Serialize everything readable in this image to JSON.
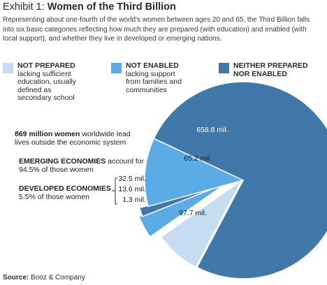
{
  "header": {
    "exhibit_label": "Exhibit 1:",
    "title": "Women of the Third Billion",
    "subtitle": "Representing about one-fourth of the world's women between ages 20 and 65, the Third Billion falls into six basic categories reflecting how much they are prepared (with education) and enabled (with local support), and whether they live in developed or emerging nations."
  },
  "legend": [
    {
      "heading": "NOT PREPARED",
      "lines": [
        "lacking sufficient",
        "education, usually",
        "defined as",
        "secondary school"
      ],
      "color": "#c5dcf3"
    },
    {
      "heading": "NOT ENABLED",
      "lines": [
        "lacking support",
        "from families and",
        "communities"
      ],
      "color": "#5aabe6"
    },
    {
      "heading": "NEITHER PREPARED",
      "heading2": "NOR ENABLED",
      "lines": [],
      "color": "#4178aa"
    }
  ],
  "annotations": {
    "total_bold": "869 million women",
    "total_rest": " worldwide lead",
    "total_line2": "lives outside the economic system",
    "emerging_bold": "EMERGING ECONOMIES",
    "emerging_rest": " account for",
    "emerging_line2": "94.5% of those women",
    "developed_bold": "DEVELOPED ECONOMIES",
    "developed_line2": "5.5% of those women"
  },
  "chart_data": {
    "type": "pie",
    "unit": "mil.",
    "slices": [
      {
        "group": "emerging",
        "category": "NEITHER PREPARED NOR ENABLED",
        "value": 658.8,
        "label": "658.8 mil.",
        "color": "#4178aa",
        "label_color": "#ffffff"
      },
      {
        "group": "emerging",
        "category": "NOT PREPARED",
        "value": 65.2,
        "label": "65.2 mil.",
        "color": "#c5dcf3",
        "label_color": "#1e1e1e"
      },
      {
        "group": "developed",
        "category": "NOT ENABLED",
        "value": 32.5,
        "label": "32.5 mil.",
        "color": "#5aabe6",
        "label_color": "#1e1e1e"
      },
      {
        "group": "developed",
        "category": "NEITHER PREPARED NOR ENABLED",
        "value": 13.6,
        "label": "13.6 mil.",
        "color": "#4178aa",
        "label_color": "#1e1e1e"
      },
      {
        "group": "developed",
        "category": "NOT PREPARED",
        "value": 1.3,
        "label": "1.3 mil.",
        "color": "#c5dcf3",
        "label_color": "#1e1e1e"
      },
      {
        "group": "emerging",
        "category": "NOT ENABLED",
        "value": 97.7,
        "label": "97.7 mil.",
        "color": "#5aabe6",
        "label_color": "#1e1e1e"
      }
    ]
  },
  "source": {
    "label": "Source:",
    "text": " Booz & Company"
  }
}
